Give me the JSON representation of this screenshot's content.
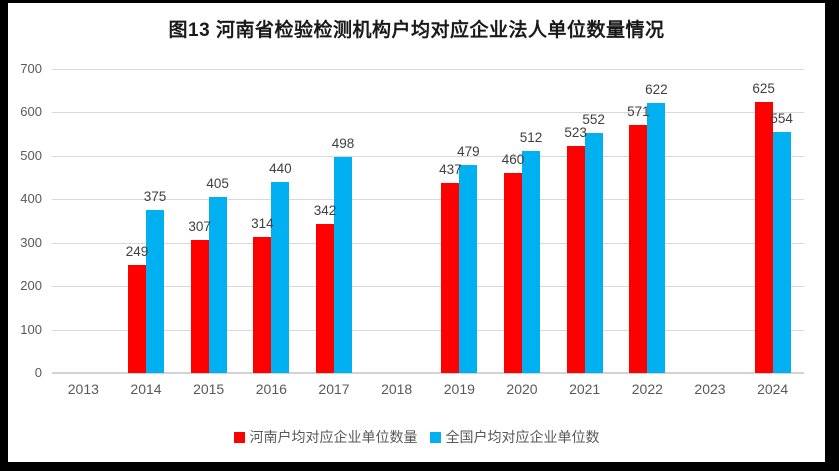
{
  "figure": {
    "frame_color": "#000000",
    "background": "#FFFFFF"
  },
  "chart_data": {
    "type": "bar",
    "title": "图13 河南省检验检测机构户均对应企业法人单位数量情况",
    "categories": [
      "2013",
      "2014",
      "2015",
      "2016",
      "2017",
      "2018",
      "2019",
      "2020",
      "2021",
      "2022",
      "2023",
      "2024"
    ],
    "series": [
      {
        "name": "河南户均对应企业单位数量",
        "color": "#FF0000",
        "values": [
          null,
          249,
          307,
          314,
          342,
          null,
          437,
          460,
          523,
          571,
          null,
          625
        ]
      },
      {
        "name": "全国户均对应企业单位数",
        "color": "#00B0F0",
        "values": [
          null,
          375,
          405,
          440,
          498,
          null,
          479,
          512,
          552,
          622,
          null,
          554
        ]
      }
    ],
    "ylim": [
      0,
      700
    ],
    "ytick_step": 100,
    "yticks": [
      "0",
      "100",
      "200",
      "300",
      "400",
      "500",
      "600",
      "700"
    ],
    "grid": true,
    "data_labels": true,
    "legend_position": "bottom",
    "style": {
      "gridline_color": "#D9D9D9",
      "axis_line_color": "#D2D2D2",
      "tick_label_color": "#595959",
      "value_label_color": "#3F3F3F",
      "title_color": "#1A1A1A"
    }
  }
}
